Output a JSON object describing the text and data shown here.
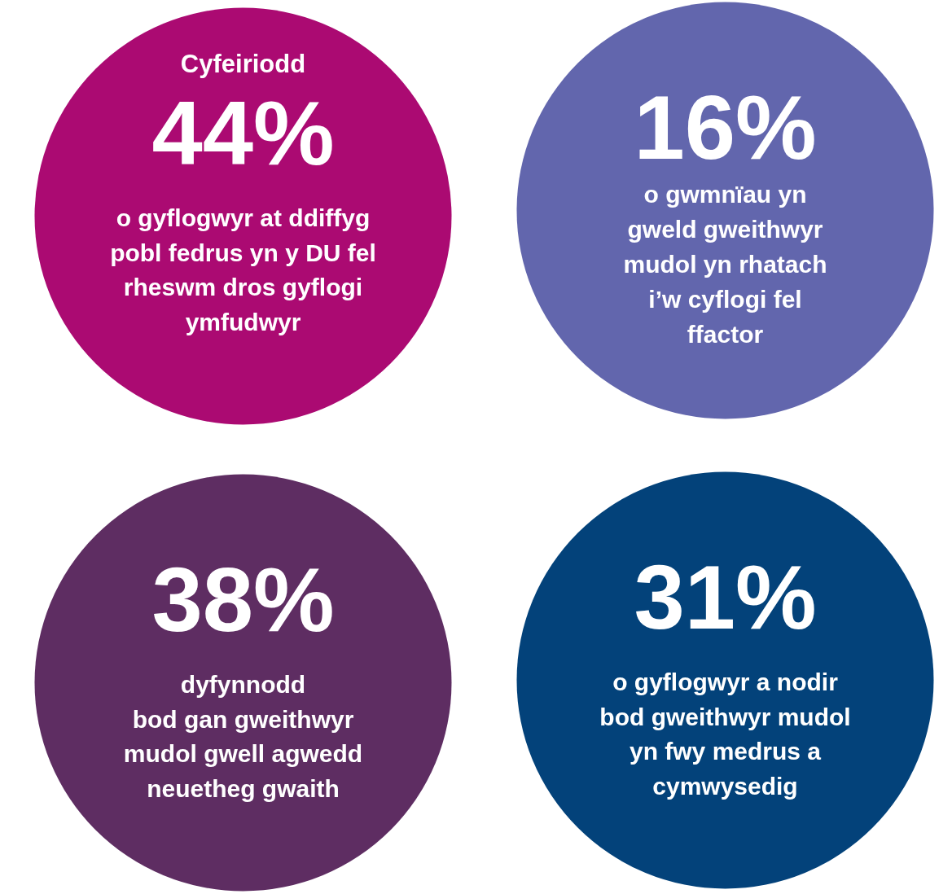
{
  "chart_data": {
    "type": "other",
    "categories": [
      "o gyflogwyr at ddiffyg\npobl fedrus yn y DU fel\nrheswm dros gyflogi\nymfudwyr",
      "o gwmnïau yn\ngweld gweithwyr\nmudol yn rhatach\ni’w cyflogi fel\nffactor",
      "dyfynnodd\nbod gan gweithwyr\nmudol gwell agwedd\nneuetheg gwaith",
      "o gyflogwyr a nodir\nbod gweithwyr mudol\nyn fwy medrus a\ncymwysedig"
    ],
    "values": [
      44,
      16,
      38,
      31
    ],
    "value_labels": [
      "44%",
      "16%",
      "38%",
      "31%"
    ],
    "colors": [
      "#ab0a72",
      "#6266ad",
      "#5e2d62",
      "#03427a"
    ],
    "annotations": [
      "Cyfeiriodd"
    ]
  }
}
